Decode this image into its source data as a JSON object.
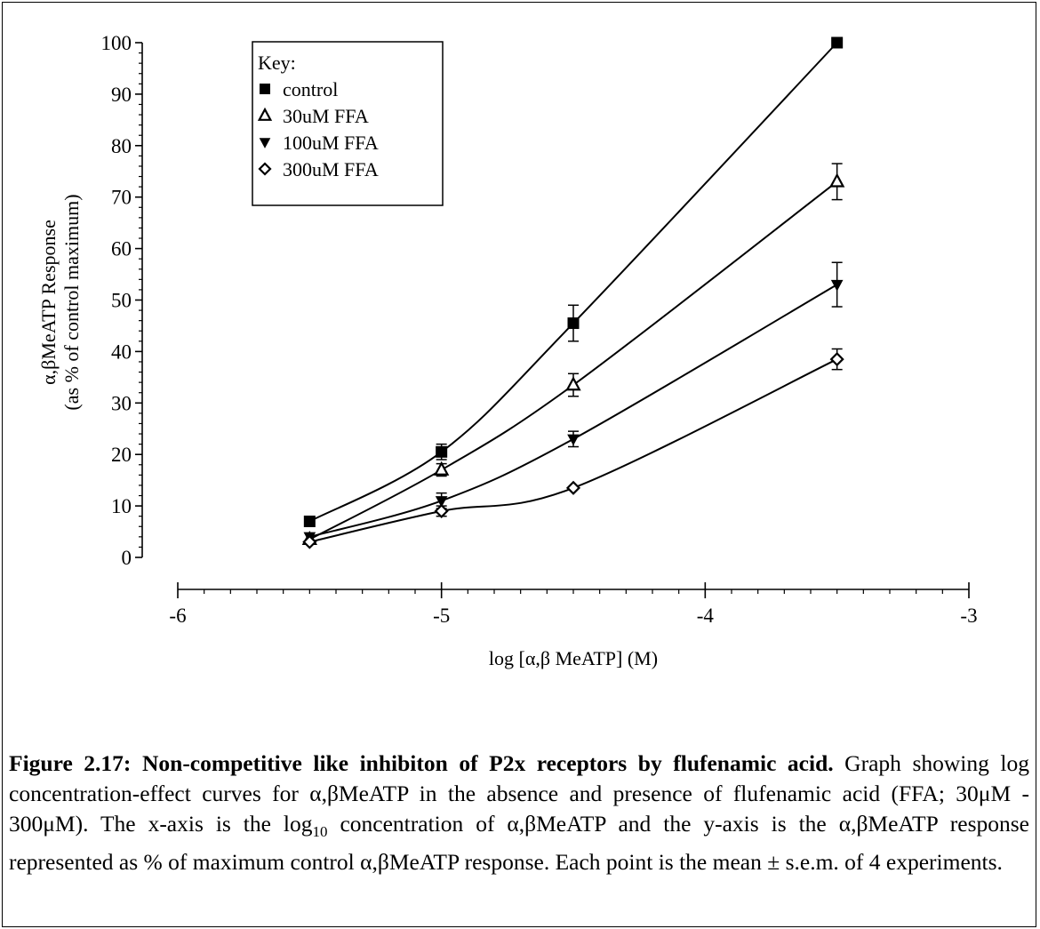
{
  "chart_data": {
    "type": "line",
    "xlabel": "log [α,β MeATP] (M)",
    "ylabel_line1": "α,βMeATP Response",
    "ylabel_line2": "(as % of control maximum)",
    "xlim": [
      -6,
      -3
    ],
    "ylim": [
      0,
      100
    ],
    "x_ticks": [
      -6,
      -5,
      -4,
      -3
    ],
    "x_tick_labels": [
      "-6",
      "-5",
      "-4",
      "-3"
    ],
    "x_minor_step": 0.1,
    "y_ticks": [
      0,
      10,
      20,
      30,
      40,
      50,
      60,
      70,
      80,
      90,
      100
    ],
    "y_tick_labels": [
      "0",
      "10",
      "20",
      "30",
      "40",
      "50",
      "60",
      "70",
      "80",
      "90",
      "100"
    ],
    "y_minor_step": 2,
    "grid": false,
    "legend": {
      "title": "Key:",
      "placement": "top-left",
      "entries": [
        "control",
        "30uM FFA",
        "100uM FFA",
        "300uM FFA"
      ]
    },
    "series": [
      {
        "name": "control",
        "marker": "square-filled",
        "x": [
          -5.5,
          -5.0,
          -4.5,
          -3.5
        ],
        "y": [
          7,
          20.5,
          45.5,
          100
        ],
        "sem": [
          0.6,
          1.5,
          3.5,
          0.4
        ]
      },
      {
        "name": "30uM FFA",
        "marker": "triangle-up-open",
        "x": [
          -5.5,
          -5.0,
          -4.5,
          -3.5
        ],
        "y": [
          3.5,
          17,
          33.5,
          73
        ],
        "sem": [
          0.6,
          1.2,
          2.2,
          3.5
        ]
      },
      {
        "name": "100uM FFA",
        "marker": "triangle-down-filled",
        "x": [
          -5.5,
          -5.0,
          -4.5,
          -3.5
        ],
        "y": [
          4,
          11,
          23,
          53
        ],
        "sem": [
          0.6,
          1.5,
          1.5,
          4.3
        ]
      },
      {
        "name": "300uM FFA",
        "marker": "diamond-open",
        "x": [
          -5.5,
          -5.0,
          -4.5,
          -3.5
        ],
        "y": [
          3,
          9,
          13.5,
          38.5
        ],
        "sem": [
          0.5,
          1.0,
          0.6,
          2.0
        ]
      }
    ]
  },
  "caption": {
    "title": "Figure 2.17: Non-competitive like inhibiton of P2x receptors by flufenamic acid.",
    "body_a": " Graph showing log concentration-effect curves for α,βMeATP in the absence and presence of flufenamic acid (FFA; 30μM - 300μM). The x-axis is the log",
    "body_sub": "10",
    "body_b": " concentration of α,βMeATP and the y-axis is the α,βMeATP response represented as % of maximum control α,βMeATP response. Each point is the mean ± s.e.m. of 4 experiments."
  }
}
